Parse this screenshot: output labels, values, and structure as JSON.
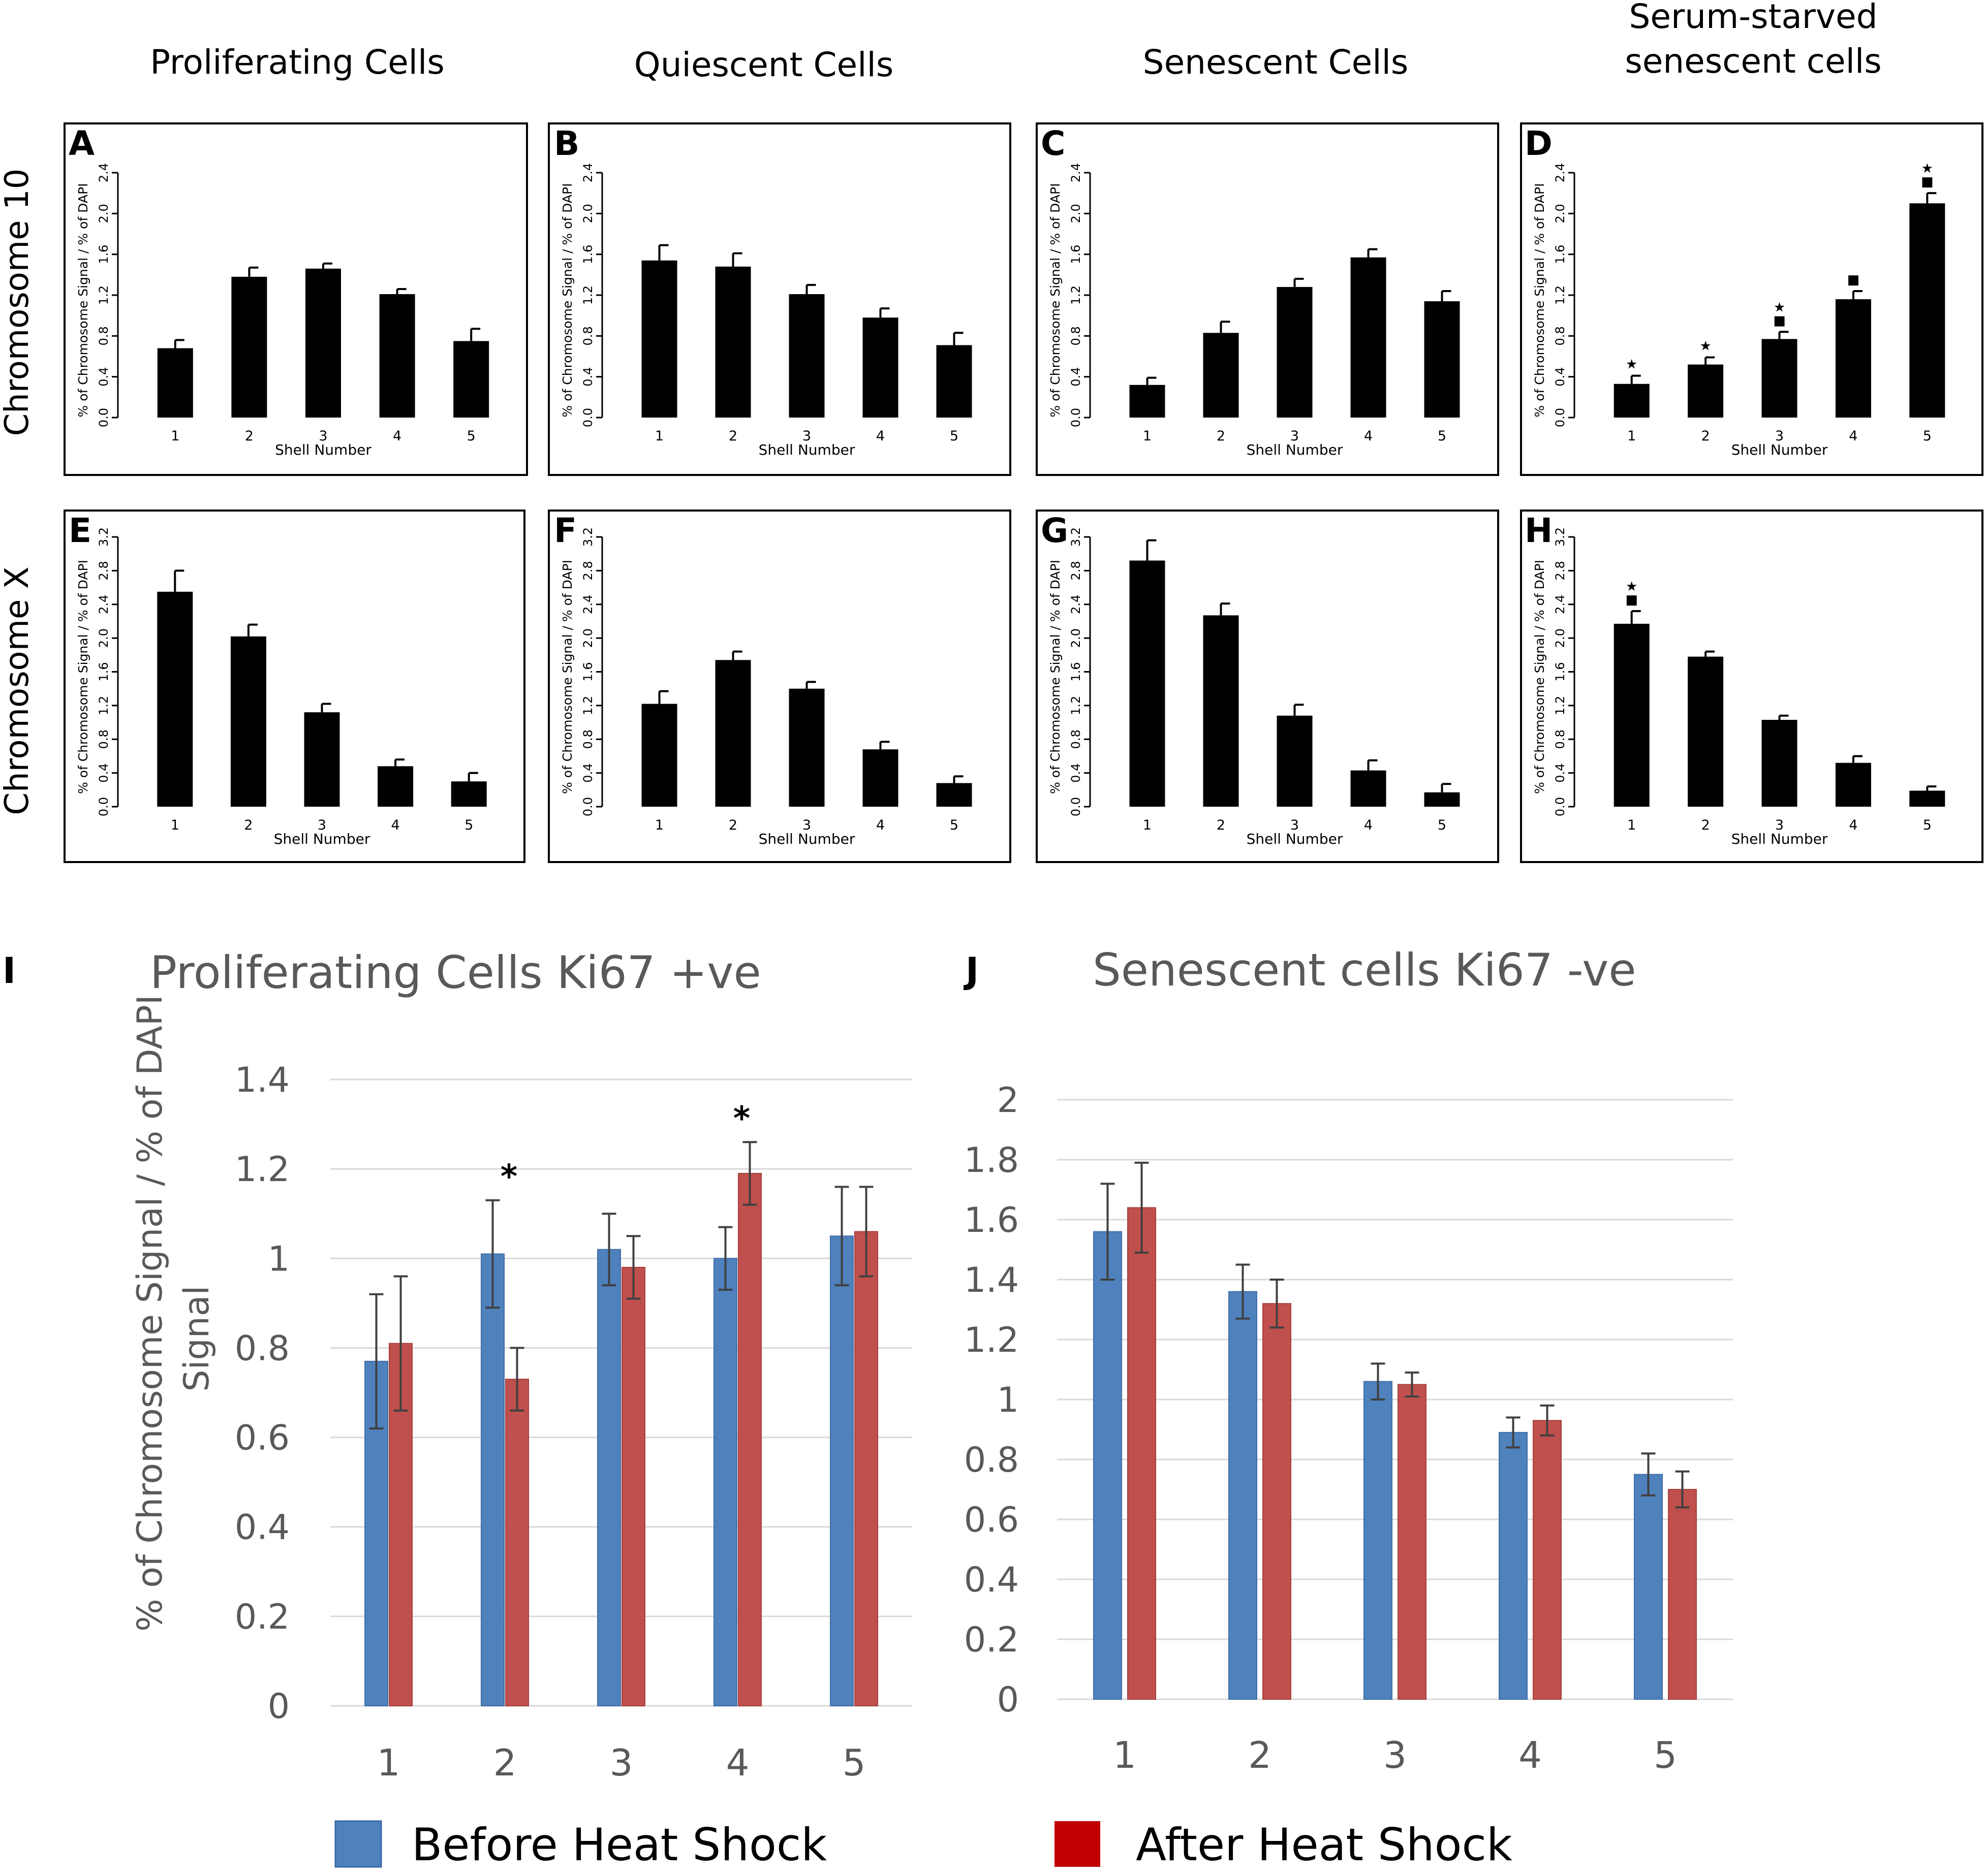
{
  "column_headers": [
    "Proliferating Cells",
    "Quiescent Cells",
    "Senescent Cells",
    "Serum-starved senescent cells"
  ],
  "row_headers": [
    "Chromosome 10",
    "Chromosome X"
  ],
  "symbols": {
    "star": "★",
    "square": "■",
    "asterisk": "*"
  },
  "colors": {
    "bar_black": "#000000",
    "before": "#4f81bd",
    "after": "#c0504d",
    "grid": "#d9d9d9",
    "axis_text": "#595959"
  },
  "chart_data": [
    {
      "panel": "A",
      "type": "bar",
      "ylabel": "% of Chromosome Signal / % of DAPI",
      "xlabel": "Shell Number",
      "categories": [
        "1",
        "2",
        "3",
        "4",
        "5"
      ],
      "values": [
        0.68,
        1.38,
        1.46,
        1.21,
        0.75
      ],
      "errors": [
        0.08,
        0.09,
        0.05,
        0.05,
        0.12
      ],
      "ylim": [
        0,
        2.4
      ],
      "yticks": [
        "0.0",
        "0.4",
        "0.8",
        "1.2",
        "1.6",
        "2.0",
        "2.4"
      ],
      "markers": []
    },
    {
      "panel": "B",
      "type": "bar",
      "ylabel": "% of Chromosome Signal / % of DAPI",
      "xlabel": "Shell Number",
      "categories": [
        "1",
        "2",
        "3",
        "4",
        "5"
      ],
      "values": [
        1.54,
        1.48,
        1.21,
        0.98,
        0.71
      ],
      "errors": [
        0.15,
        0.13,
        0.09,
        0.09,
        0.12
      ],
      "ylim": [
        0,
        2.4
      ],
      "yticks": [
        "0.0",
        "0.4",
        "0.8",
        "1.2",
        "1.6",
        "2.0",
        "2.4"
      ],
      "markers": []
    },
    {
      "panel": "C",
      "type": "bar",
      "ylabel": "% of Chromosome Signal / % of DAPI",
      "xlabel": "Shell Number",
      "categories": [
        "1",
        "2",
        "3",
        "4",
        "5"
      ],
      "values": [
        0.32,
        0.83,
        1.28,
        1.57,
        1.14
      ],
      "errors": [
        0.07,
        0.11,
        0.08,
        0.08,
        0.1
      ],
      "ylim": [
        0,
        2.4
      ],
      "yticks": [
        "0.0",
        "0.4",
        "0.8",
        "1.2",
        "1.6",
        "2.0",
        "2.4"
      ],
      "markers": []
    },
    {
      "panel": "D",
      "type": "bar",
      "ylabel": "% of Chromosome Signal / % of DAPI",
      "xlabel": "Shell Number",
      "categories": [
        "1",
        "2",
        "3",
        "4",
        "5"
      ],
      "values": [
        0.33,
        0.52,
        0.77,
        1.16,
        2.1
      ],
      "errors": [
        0.08,
        0.07,
        0.07,
        0.08,
        0.1
      ],
      "ylim": [
        0,
        2.4
      ],
      "yticks": [
        "0.0",
        "0.4",
        "0.8",
        "1.2",
        "1.6",
        "2.0",
        "2.4"
      ],
      "markers": [
        [
          "star"
        ],
        [
          "star"
        ],
        [
          "square",
          "star"
        ],
        [
          "square"
        ],
        [
          "square",
          "star"
        ]
      ]
    },
    {
      "panel": "E",
      "type": "bar",
      "ylabel": "% of Chromosome Signal / % of DAPI",
      "xlabel": "Shell Number",
      "categories": [
        "1",
        "2",
        "3",
        "4",
        "5"
      ],
      "values": [
        2.55,
        2.02,
        1.12,
        0.48,
        0.3
      ],
      "errors": [
        0.25,
        0.14,
        0.1,
        0.08,
        0.1
      ],
      "ylim": [
        0,
        3.2
      ],
      "yticks": [
        "0.0",
        "0.4",
        "0.8",
        "1.2",
        "1.6",
        "2.0",
        "2.4",
        "2.8",
        "3.2"
      ],
      "markers": []
    },
    {
      "panel": "F",
      "type": "bar",
      "ylabel": "% of Chromosome Signal / % of DAPI",
      "xlabel": "Shell Number",
      "categories": [
        "1",
        "2",
        "3",
        "4",
        "5"
      ],
      "values": [
        1.22,
        1.74,
        1.4,
        0.68,
        0.28
      ],
      "errors": [
        0.15,
        0.1,
        0.08,
        0.09,
        0.08
      ],
      "ylim": [
        0,
        3.2
      ],
      "yticks": [
        "0.0",
        "0.4",
        "0.8",
        "1.2",
        "1.6",
        "2.0",
        "2.4",
        "2.8",
        "3.2"
      ],
      "markers": []
    },
    {
      "panel": "G",
      "type": "bar",
      "ylabel": "% of Chromosome Signal / % of DAPI",
      "xlabel": "Shell Number",
      "categories": [
        "1",
        "2",
        "3",
        "4",
        "5"
      ],
      "values": [
        2.92,
        2.27,
        1.08,
        0.43,
        0.17
      ],
      "errors": [
        0.24,
        0.14,
        0.13,
        0.12,
        0.1
      ],
      "ylim": [
        0,
        3.2
      ],
      "yticks": [
        "0.0",
        "0.4",
        "0.8",
        "1.2",
        "1.6",
        "2.0",
        "2.4",
        "2.8",
        "3.2"
      ],
      "markers": []
    },
    {
      "panel": "H",
      "type": "bar",
      "ylabel": "% of Chromosome Signal / % of DAPI",
      "xlabel": "Shell Number",
      "categories": [
        "1",
        "2",
        "3",
        "4",
        "5"
      ],
      "values": [
        2.17,
        1.78,
        1.03,
        0.52,
        0.19
      ],
      "errors": [
        0.15,
        0.06,
        0.05,
        0.08,
        0.05
      ],
      "ylim": [
        0,
        3.2
      ],
      "yticks": [
        "0.0",
        "0.4",
        "0.8",
        "1.2",
        "1.6",
        "2.0",
        "2.4",
        "2.8",
        "3.2"
      ],
      "markers": [
        [
          "square",
          "star"
        ],
        [],
        [],
        [],
        []
      ]
    },
    {
      "panel": "I",
      "type": "bar",
      "title": "Proliferating Cells Ki67 +ve",
      "ylabel": "% of Chromosome Signal / % of DAPI Signal",
      "xlabel": "",
      "categories": [
        "1",
        "2",
        "3",
        "4",
        "5"
      ],
      "series": [
        {
          "name": "Before Heat Shock",
          "values": [
            0.77,
            1.01,
            1.02,
            1.0,
            1.05
          ],
          "errors": [
            0.15,
            0.12,
            0.08,
            0.07,
            0.11
          ]
        },
        {
          "name": "After Heat Shock",
          "values": [
            0.81,
            0.73,
            0.98,
            1.19,
            1.06
          ],
          "errors": [
            0.15,
            0.07,
            0.07,
            0.07,
            0.1
          ]
        }
      ],
      "ylim": [
        0,
        1.4
      ],
      "yticks": [
        "0",
        "0.2",
        "0.4",
        "0.6",
        "0.8",
        "1",
        "1.2",
        "1.4"
      ],
      "significance": [
        "",
        "*",
        "",
        "*",
        ""
      ]
    },
    {
      "panel": "J",
      "type": "bar",
      "title": "Senescent cells Ki67 -ve",
      "ylabel": "",
      "xlabel": "",
      "categories": [
        "1",
        "2",
        "3",
        "4",
        "5"
      ],
      "series": [
        {
          "name": "Before Heat Shock",
          "values": [
            1.56,
            1.36,
            1.06,
            0.89,
            0.75
          ],
          "errors": [
            0.16,
            0.09,
            0.06,
            0.05,
            0.07
          ]
        },
        {
          "name": "After Heat Shock",
          "values": [
            1.64,
            1.32,
            1.05,
            0.93,
            0.7
          ],
          "errors": [
            0.15,
            0.08,
            0.04,
            0.05,
            0.06
          ]
        }
      ],
      "ylim": [
        0,
        2
      ],
      "yticks": [
        "0",
        "0.2",
        "0.4",
        "0.6",
        "0.8",
        "1",
        "1.2",
        "1.4",
        "1.6",
        "1.8",
        "2"
      ],
      "significance": [
        "",
        "",
        "",
        "",
        ""
      ]
    }
  ],
  "legend": [
    "Before Heat Shock",
    "After Heat Shock"
  ]
}
